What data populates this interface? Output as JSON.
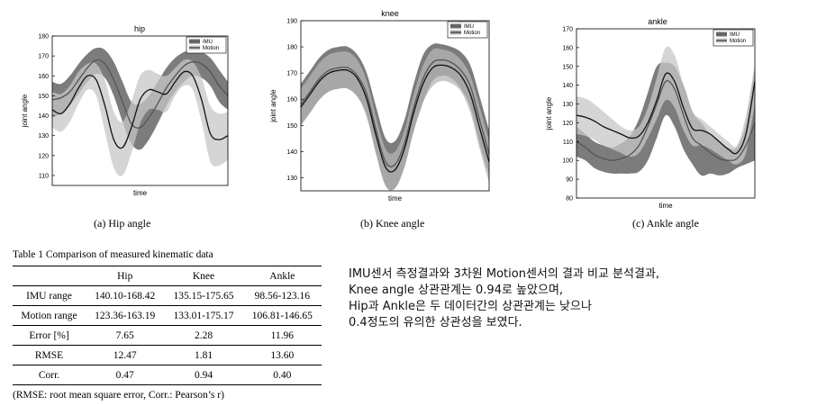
{
  "chart_data": [
    {
      "type": "line",
      "title": "hip",
      "xlabel": "time",
      "ylabel": "joint angle",
      "ylim": [
        105,
        180
      ],
      "yticks": [
        110,
        120,
        130,
        140,
        150,
        160,
        170,
        180
      ],
      "grid": false,
      "legend_placement": "top-right",
      "caption": "(a) Hip angle",
      "x": [
        0,
        5,
        10,
        15,
        20,
        25,
        30,
        35,
        40,
        45,
        50,
        55,
        60,
        65,
        70,
        75,
        80,
        85,
        90,
        95,
        100
      ],
      "series": [
        {
          "name": "IMU",
          "color": "#555555",
          "band_color": "#6e6e6e",
          "mean": [
            148,
            149,
            152,
            158,
            164,
            168,
            166,
            158,
            147,
            136,
            134,
            139,
            146,
            154,
            160,
            165,
            167,
            166,
            162,
            155,
            150
          ],
          "upper": [
            157,
            156,
            160,
            166,
            171,
            174,
            173,
            167,
            157,
            147,
            146,
            150,
            157,
            164,
            169,
            172,
            173,
            172,
            169,
            163,
            157
          ],
          "lower": [
            139,
            141,
            145,
            151,
            157,
            161,
            159,
            150,
            137,
            126,
            123,
            128,
            136,
            145,
            152,
            157,
            160,
            159,
            155,
            147,
            143
          ]
        },
        {
          "name": "Motion",
          "color": "#111111",
          "band_color": "#c7c7c7",
          "mean": [
            143,
            141,
            146,
            154,
            160,
            158,
            145,
            128,
            124,
            134,
            148,
            153,
            152,
            151,
            157,
            162,
            160,
            148,
            131,
            128,
            130
          ],
          "upper": [
            152,
            151,
            155,
            162,
            166,
            166,
            158,
            142,
            137,
            147,
            160,
            163,
            161,
            160,
            164,
            168,
            167,
            159,
            145,
            141,
            142
          ],
          "lower": [
            134,
            132,
            137,
            146,
            153,
            150,
            132,
            114,
            110,
            121,
            136,
            143,
            143,
            142,
            150,
            155,
            153,
            137,
            117,
            115,
            118
          ]
        }
      ]
    },
    {
      "type": "line",
      "title": "knee",
      "xlabel": "time",
      "ylabel": "joint angle",
      "ylim": [
        125,
        190
      ],
      "yticks": [
        130,
        140,
        150,
        160,
        170,
        180,
        190
      ],
      "grid": false,
      "legend_placement": "top-right",
      "caption": "(b) Knee angle",
      "x": [
        0,
        5,
        10,
        15,
        20,
        25,
        30,
        35,
        40,
        45,
        50,
        55,
        60,
        65,
        70,
        75,
        80,
        85,
        90,
        95,
        100
      ],
      "series": [
        {
          "name": "IMU",
          "color": "#555555",
          "band_color": "#6e6e6e",
          "mean": [
            158,
            163,
            168,
            171,
            172,
            172,
            169,
            162,
            148,
            136,
            135,
            143,
            157,
            168,
            174,
            175,
            174,
            171,
            165,
            152,
            139
          ],
          "upper": [
            166,
            171,
            176,
            179,
            180,
            180,
            177,
            170,
            157,
            145,
            144,
            152,
            166,
            177,
            181,
            181,
            180,
            178,
            173,
            161,
            148
          ],
          "lower": [
            150,
            155,
            160,
            163,
            164,
            164,
            161,
            154,
            139,
            127,
            126,
            134,
            148,
            159,
            167,
            169,
            168,
            164,
            157,
            143,
            131
          ]
        },
        {
          "name": "Motion",
          "color": "#111111",
          "band_color": "#b5b5b5",
          "mean": [
            157,
            162,
            167,
            170,
            171,
            171,
            168,
            160,
            146,
            134,
            133,
            141,
            155,
            166,
            172,
            173,
            172,
            169,
            162,
            149,
            136
          ],
          "upper": [
            164,
            169,
            174,
            177,
            178,
            178,
            175,
            167,
            153,
            141,
            140,
            148,
            162,
            173,
            179,
            179,
            178,
            175,
            169,
            157,
            144
          ],
          "lower": [
            150,
            155,
            160,
            163,
            164,
            164,
            161,
            153,
            139,
            127,
            126,
            134,
            148,
            159,
            165,
            167,
            166,
            163,
            155,
            141,
            128
          ]
        }
      ]
    },
    {
      "type": "line",
      "title": "ankle",
      "xlabel": "time",
      "ylabel": "joint angle",
      "ylim": [
        80,
        170
      ],
      "yticks": [
        80,
        90,
        100,
        110,
        120,
        130,
        140,
        150,
        160,
        170
      ],
      "grid": false,
      "legend_placement": "top-right",
      "caption": "(c) Ankle angle",
      "x": [
        0,
        5,
        10,
        15,
        20,
        25,
        30,
        35,
        40,
        45,
        50,
        55,
        60,
        65,
        70,
        75,
        80,
        85,
        90,
        95,
        100
      ],
      "series": [
        {
          "name": "IMU",
          "color": "#555555",
          "band_color": "#6e6e6e",
          "mean": [
            110,
            107,
            103,
            101,
            100,
            101,
            103,
            108,
            118,
            130,
            142,
            138,
            124,
            112,
            108,
            104,
            101,
            100,
            101,
            108,
            120
          ],
          "upper": [
            118,
            114,
            110,
            108,
            107,
            109,
            113,
            122,
            136,
            150,
            152,
            150,
            140,
            126,
            120,
            114,
            110,
            107,
            107,
            120,
            150
          ],
          "lower": [
            102,
            100,
            96,
            94,
            93,
            93,
            93,
            94,
            100,
            112,
            124,
            118,
            106,
            98,
            92,
            93,
            92,
            93,
            96,
            98,
            100
          ]
        },
        {
          "name": "Motion",
          "color": "#111111",
          "band_color": "#c7c7c7",
          "mean": [
            124,
            123,
            121,
            118,
            116,
            114,
            112,
            113,
            120,
            132,
            146,
            142,
            128,
            117,
            116,
            114,
            110,
            106,
            104,
            114,
            142
          ],
          "upper": [
            134,
            133,
            130,
            126,
            122,
            118,
            116,
            118,
            128,
            144,
            160,
            156,
            140,
            126,
            122,
            118,
            114,
            110,
            108,
            124,
            151
          ],
          "lower": [
            114,
            113,
            111,
            108,
            106,
            104,
            102,
            104,
            112,
            122,
            132,
            128,
            116,
            108,
            108,
            106,
            103,
            100,
            98,
            104,
            130
          ]
        }
      ]
    }
  ],
  "table": {
    "caption": "Table 1  Comparison of measured kinematic data",
    "headers": [
      "",
      "Hip",
      "Knee",
      "Ankle"
    ],
    "rows": [
      [
        "IMU range",
        "140.10-168.42",
        "135.15-175.65",
        "98.56-123.16"
      ],
      [
        "Motion range",
        "123.36-163.19",
        "133.01-175.17",
        "106.81-146.65"
      ],
      [
        "Error [%]",
        "7.65",
        "2.28",
        "11.96"
      ],
      [
        "RMSE",
        "12.47",
        "1.81",
        "13.60"
      ],
      [
        "Corr.",
        "0.47",
        "0.94",
        "0.40"
      ]
    ],
    "footnote": "(RMSE: root mean square error, Corr.: Pearson’s r)"
  },
  "summary": {
    "lines": [
      "IMU센서 측정결과와 3차원 Motion센서의 결과 비교 분석결과,",
      "Knee angle 상관관계는 0.94로 높았으며,",
      "Hip과 Ankle은 두 데이터간의 상관관계는 낮으나",
      "0.4정도의 유의한 상관성을 보였다."
    ]
  }
}
